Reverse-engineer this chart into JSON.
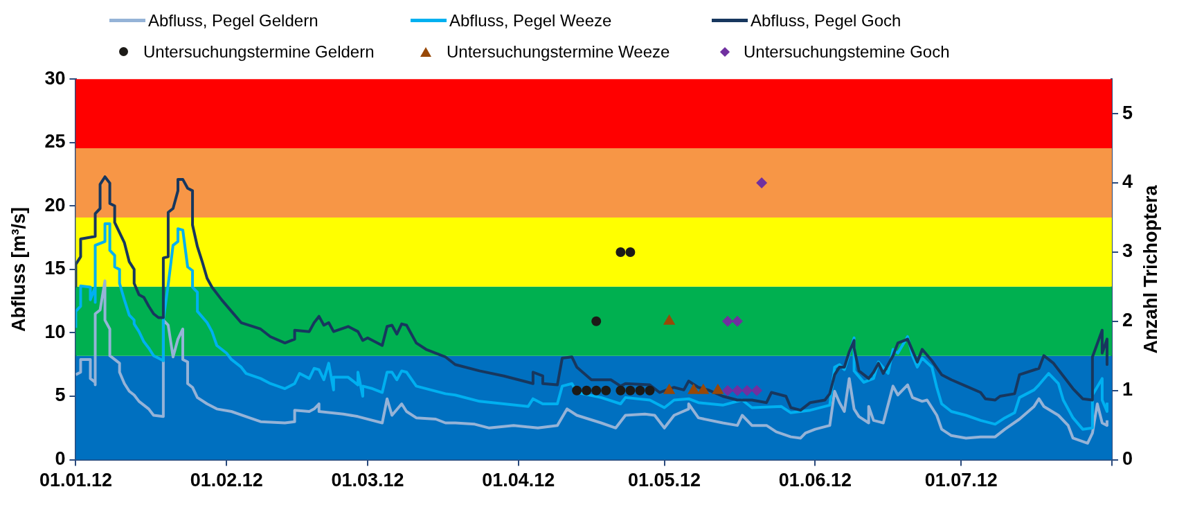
{
  "chart_data": {
    "type": "line",
    "ylabel": "Abfluss [m³/s]",
    "y2label": "Anzahl Trichoptera",
    "legend": "top",
    "grid": false,
    "xlim": [
      "2012-01-01",
      "2012-08-01"
    ],
    "xticks": [
      {
        "value": "2012-01-01",
        "label": "01.01.12"
      },
      {
        "value": "2012-02-01",
        "label": "01.02.12"
      },
      {
        "value": "2012-03-01",
        "label": "01.03.12"
      },
      {
        "value": "2012-04-01",
        "label": "01.04.12"
      },
      {
        "value": "2012-05-01",
        "label": "01.05.12"
      },
      {
        "value": "2012-06-01",
        "label": "01.06.12"
      },
      {
        "value": "2012-07-01",
        "label": "01.07.12"
      },
      {
        "value": "2012-08-01",
        "label": null
      }
    ],
    "ylim": [
      0,
      30
    ],
    "yticks": [
      0,
      5,
      10,
      15,
      20,
      25,
      30
    ],
    "y2lim": [
      0,
      5.5
    ],
    "y2ticks": [
      0,
      1,
      2,
      3,
      4,
      5
    ],
    "bands": [
      {
        "axis": "y2",
        "from": 0,
        "to": 1.5,
        "color": "#0070c0"
      },
      {
        "axis": "y2",
        "from": 1.5,
        "to": 2.5,
        "color": "#00b050"
      },
      {
        "axis": "y2",
        "from": 2.5,
        "to": 3.5,
        "color": "#ffff00"
      },
      {
        "axis": "y2",
        "from": 3.5,
        "to": 4.5,
        "color": "#f79646"
      },
      {
        "axis": "y2",
        "from": 4.5,
        "to": 5.5,
        "color": "#ff0000"
      }
    ],
    "series": [
      {
        "name": "Abfluss, Pegel Geldern",
        "color": "#95b3d7",
        "marker": "none",
        "x": [
          "2012-01-01",
          "2012-01-02",
          "2012-01-02",
          "2012-01-04",
          "2012-01-04",
          "2012-01-05",
          "2012-01-05",
          "2012-01-05",
          "2012-01-06",
          "2012-01-07",
          "2012-01-07",
          "2012-01-08",
          "2012-01-08",
          "2012-01-09",
          "2012-01-10",
          "2012-01-10",
          "2012-01-11",
          "2012-01-12",
          "2012-01-13",
          "2012-01-14",
          "2012-01-16",
          "2012-01-17",
          "2012-01-19",
          "2012-01-19",
          "2012-01-20",
          "2012-01-21",
          "2012-01-22",
          "2012-01-23",
          "2012-01-23",
          "2012-01-24",
          "2012-01-24",
          "2012-01-25",
          "2012-01-26",
          "2012-01-28",
          "2012-01-30",
          "2012-02-02",
          "2012-02-05",
          "2012-02-08",
          "2012-02-13",
          "2012-02-15",
          "2012-02-15",
          "2012-02-18",
          "2012-02-19",
          "2012-02-20",
          "2012-02-20",
          "2012-02-25",
          "2012-02-28",
          "2012-03-04",
          "2012-03-05",
          "2012-03-06",
          "2012-03-08",
          "2012-03-09",
          "2012-03-11",
          "2012-03-15",
          "2012-03-17",
          "2012-03-19",
          "2012-03-23",
          "2012-03-26",
          "2012-03-31",
          "2012-04-05",
          "2012-04-09",
          "2012-04-11",
          "2012-04-13",
          "2012-04-18",
          "2012-04-21",
          "2012-04-23",
          "2012-04-27",
          "2012-04-29",
          "2012-05-01",
          "2012-05-03",
          "2012-05-06",
          "2012-05-06",
          "2012-05-08",
          "2012-05-13",
          "2012-05-16",
          "2012-05-17",
          "2012-05-19",
          "2012-05-22",
          "2012-05-24",
          "2012-05-27",
          "2012-05-29",
          "2012-05-30",
          "2012-06-01",
          "2012-06-04",
          "2012-06-05",
          "2012-06-06",
          "2012-06-07",
          "2012-06-08",
          "2012-06-09",
          "2012-06-10",
          "2012-06-12",
          "2012-06-12",
          "2012-06-13",
          "2012-06-15",
          "2012-06-17",
          "2012-06-18",
          "2012-06-20",
          "2012-06-21",
          "2012-06-23",
          "2012-06-24",
          "2012-06-26",
          "2012-06-27",
          "2012-06-29",
          "2012-07-02",
          "2012-07-05",
          "2012-07-08",
          "2012-07-10",
          "2012-07-13",
          "2012-07-16",
          "2012-07-17",
          "2012-07-18",
          "2012-07-21",
          "2012-07-23",
          "2012-07-24",
          "2012-07-27",
          "2012-07-28",
          "2012-07-29",
          "2012-07-30",
          "2012-07-31",
          "2012-07-31"
        ],
        "values": [
          6.7,
          6.9,
          7.9,
          7.9,
          6.4,
          6.1,
          5.9,
          11.5,
          11.8,
          14.1,
          11.0,
          10.3,
          8.2,
          7.9,
          7.6,
          6.9,
          6.0,
          5.4,
          5.1,
          4.6,
          4.0,
          3.5,
          3.4,
          11.0,
          10.6,
          8.1,
          9.5,
          10.3,
          7.9,
          7.7,
          6.0,
          5.7,
          4.9,
          4.4,
          4.0,
          3.8,
          3.4,
          3.0,
          2.9,
          3.0,
          3.9,
          3.8,
          4.0,
          4.4,
          3.8,
          3.6,
          3.4,
          2.9,
          4.8,
          3.5,
          4.4,
          3.8,
          3.3,
          3.2,
          2.9,
          2.9,
          2.8,
          2.5,
          2.7,
          2.5,
          2.7,
          4.0,
          3.5,
          2.9,
          2.5,
          3.5,
          3.6,
          3.5,
          2.5,
          3.5,
          4.0,
          4.4,
          3.3,
          2.9,
          2.7,
          3.5,
          2.7,
          2.7,
          2.2,
          1.8,
          1.7,
          2.1,
          2.4,
          2.7,
          5.4,
          4.5,
          3.8,
          6.4,
          4.0,
          3.4,
          2.9,
          4.2,
          3.1,
          2.9,
          5.8,
          5.1,
          5.9,
          4.9,
          4.6,
          4.7,
          3.5,
          2.4,
          1.9,
          1.7,
          1.8,
          1.8,
          2.4,
          3.2,
          4.2,
          4.8,
          4.2,
          3.5,
          2.7,
          1.7,
          1.3,
          2.1,
          4.4,
          2.9,
          2.7,
          3.1
        ]
      },
      {
        "name": "Abfluss, Pegel Weeze",
        "color": "#00b0f0",
        "marker": "none",
        "x": [
          "2012-01-01",
          "2012-01-01",
          "2012-01-02",
          "2012-01-02",
          "2012-01-04",
          "2012-01-04",
          "2012-01-05",
          "2012-01-05",
          "2012-01-05",
          "2012-01-07",
          "2012-01-07",
          "2012-01-08",
          "2012-01-08",
          "2012-01-09",
          "2012-01-09",
          "2012-01-10",
          "2012-01-10",
          "2012-01-11",
          "2012-01-12",
          "2012-01-13",
          "2012-01-13",
          "2012-01-14",
          "2012-01-15",
          "2012-01-16",
          "2012-01-17",
          "2012-01-18",
          "2012-01-19",
          "2012-01-19",
          "2012-01-20",
          "2012-01-21",
          "2012-01-22",
          "2012-01-22",
          "2012-01-23",
          "2012-01-24",
          "2012-01-25",
          "2012-01-25",
          "2012-01-26",
          "2012-01-26",
          "2012-01-28",
          "2012-01-29",
          "2012-01-30",
          "2012-02-01",
          "2012-02-02",
          "2012-02-04",
          "2012-02-05",
          "2012-02-08",
          "2012-02-10",
          "2012-02-13",
          "2012-02-15",
          "2012-02-16",
          "2012-02-18",
          "2012-02-19",
          "2012-02-20",
          "2012-02-21",
          "2012-02-22",
          "2012-02-23",
          "2012-02-23",
          "2012-02-26",
          "2012-02-28",
          "2012-02-28",
          "2012-02-29",
          "2012-02-29",
          "2012-03-02",
          "2012-03-04",
          "2012-03-05",
          "2012-03-06",
          "2012-03-07",
          "2012-03-08",
          "2012-03-09",
          "2012-03-11",
          "2012-03-14",
          "2012-03-17",
          "2012-03-19",
          "2012-03-24",
          "2012-03-29",
          "2012-04-03",
          "2012-04-04",
          "2012-04-06",
          "2012-04-09",
          "2012-04-10",
          "2012-04-12",
          "2012-04-13",
          "2012-04-18",
          "2012-04-22",
          "2012-04-23",
          "2012-04-28",
          "2012-05-01",
          "2012-05-03",
          "2012-05-06",
          "2012-05-08",
          "2012-05-13",
          "2012-05-17",
          "2012-05-19",
          "2012-05-25",
          "2012-05-27",
          "2012-05-31",
          "2012-06-04",
          "2012-06-05",
          "2012-06-06",
          "2012-06-07",
          "2012-06-09",
          "2012-06-09",
          "2012-06-11",
          "2012-06-13",
          "2012-06-14",
          "2012-06-16",
          "2012-06-17",
          "2012-06-18",
          "2012-06-20",
          "2012-06-21",
          "2012-06-22",
          "2012-06-23",
          "2012-06-25",
          "2012-06-26",
          "2012-06-27",
          "2012-06-29",
          "2012-07-02",
          "2012-07-05",
          "2012-07-08",
          "2012-07-10",
          "2012-07-12",
          "2012-07-13",
          "2012-07-16",
          "2012-07-17",
          "2012-07-19",
          "2012-07-21",
          "2012-07-22",
          "2012-07-24",
          "2012-07-26",
          "2012-07-28",
          "2012-07-28",
          "2012-07-30",
          "2012-07-30",
          "2012-07-31",
          "2012-07-31"
        ],
        "values": [
          10.4,
          11.7,
          12.1,
          13.7,
          13.6,
          12.6,
          13.6,
          12.4,
          16.9,
          17.2,
          18.6,
          18.6,
          16.5,
          16.1,
          15.2,
          15.0,
          13.9,
          12.6,
          11.4,
          11.0,
          10.7,
          10.1,
          9.3,
          8.8,
          8.2,
          8.0,
          7.8,
          11.0,
          13.8,
          16.9,
          17.2,
          18.2,
          18.1,
          15.2,
          14.9,
          13.6,
          13.2,
          11.7,
          10.8,
          10.1,
          9.0,
          8.4,
          7.9,
          7.3,
          6.8,
          6.4,
          6.0,
          5.6,
          6.0,
          6.8,
          6.4,
          7.2,
          7.1,
          6.3,
          7.6,
          5.5,
          6.5,
          6.5,
          5.9,
          6.9,
          5.0,
          5.8,
          5.6,
          5.3,
          6.9,
          6.9,
          6.3,
          7.0,
          6.9,
          5.8,
          5.5,
          5.2,
          5.1,
          4.6,
          4.4,
          4.2,
          4.8,
          4.4,
          4.4,
          5.8,
          6.0,
          5.3,
          4.9,
          4.4,
          4.9,
          4.7,
          4.1,
          4.7,
          4.8,
          4.5,
          4.3,
          4.7,
          4.1,
          4.2,
          3.7,
          3.9,
          4.3,
          7.3,
          7.5,
          7.1,
          9.6,
          7.0,
          6.1,
          6.4,
          7.7,
          6.8,
          8.7,
          8.4,
          9.7,
          8.2,
          7.3,
          8.0,
          7.3,
          5.7,
          4.4,
          3.8,
          3.5,
          3.1,
          2.8,
          3.3,
          3.7,
          4.9,
          5.5,
          5.9,
          6.8,
          6.0,
          4.7,
          3.3,
          2.4,
          2.5,
          5.1,
          6.4,
          4.7,
          3.8,
          4.5
        ]
      },
      {
        "name": "Abfluss, Pegel Goch",
        "color": "#17375e",
        "marker": "none",
        "x": [
          "2012-01-01",
          "2012-01-01",
          "2012-01-02",
          "2012-01-02",
          "2012-01-05",
          "2012-01-05",
          "2012-01-06",
          "2012-01-06",
          "2012-01-07",
          "2012-01-08",
          "2012-01-08",
          "2012-01-09",
          "2012-01-09",
          "2012-01-11",
          "2012-01-12",
          "2012-01-13",
          "2012-01-13",
          "2012-01-14",
          "2012-01-15",
          "2012-01-16",
          "2012-01-17",
          "2012-01-18",
          "2012-01-19",
          "2012-01-19",
          "2012-01-20",
          "2012-01-20",
          "2012-01-21",
          "2012-01-22",
          "2012-01-22",
          "2012-01-23",
          "2012-01-24",
          "2012-01-25",
          "2012-01-25",
          "2012-01-26",
          "2012-01-27",
          "2012-01-28",
          "2012-01-29",
          "2012-01-31",
          "2012-02-02",
          "2012-02-04",
          "2012-02-08",
          "2012-02-10",
          "2012-02-13",
          "2012-02-15",
          "2012-02-15",
          "2012-02-18",
          "2012-02-19",
          "2012-02-20",
          "2012-02-21",
          "2012-02-22",
          "2012-02-23",
          "2012-02-26",
          "2012-02-28",
          "2012-02-29",
          "2012-03-01",
          "2012-03-04",
          "2012-03-05",
          "2012-03-06",
          "2012-03-07",
          "2012-03-08",
          "2012-03-09",
          "2012-03-11",
          "2012-03-13",
          "2012-03-15",
          "2012-03-17",
          "2012-03-19",
          "2012-03-24",
          "2012-03-29",
          "2012-04-04",
          "2012-04-04",
          "2012-04-06",
          "2012-04-06",
          "2012-04-09",
          "2012-04-10",
          "2012-04-12",
          "2012-04-13",
          "2012-04-16",
          "2012-04-20",
          "2012-04-22",
          "2012-04-23",
          "2012-04-28",
          "2012-04-30",
          "2012-05-03",
          "2012-05-05",
          "2012-05-06",
          "2012-05-08",
          "2012-05-10",
          "2012-05-13",
          "2012-05-16",
          "2012-05-19",
          "2012-05-22",
          "2012-05-23",
          "2012-05-26",
          "2012-05-27",
          "2012-05-29",
          "2012-05-31",
          "2012-06-03",
          "2012-06-04",
          "2012-06-05",
          "2012-06-06",
          "2012-06-07",
          "2012-06-08",
          "2012-06-09",
          "2012-06-09",
          "2012-06-10",
          "2012-06-12",
          "2012-06-13",
          "2012-06-14",
          "2012-06-15",
          "2012-06-17",
          "2012-06-18",
          "2012-06-20",
          "2012-06-21",
          "2012-06-22",
          "2012-06-23",
          "2012-06-25",
          "2012-06-27",
          "2012-06-29",
          "2012-07-02",
          "2012-07-05",
          "2012-07-06",
          "2012-07-08",
          "2012-07-09",
          "2012-07-12",
          "2012-07-13",
          "2012-07-17",
          "2012-07-18",
          "2012-07-20",
          "2012-07-22",
          "2012-07-24",
          "2012-07-26",
          "2012-07-28",
          "2012-07-28",
          "2012-07-30",
          "2012-07-30",
          "2012-07-31",
          "2012-07-31"
        ],
        "values": [
          13.6,
          15.4,
          16.0,
          17.4,
          17.6,
          19.4,
          19.8,
          21.7,
          22.3,
          21.8,
          20.2,
          20.0,
          18.7,
          17.1,
          15.6,
          15.0,
          13.9,
          13.0,
          12.8,
          12.1,
          11.5,
          11.2,
          11.2,
          15.9,
          16.0,
          19.5,
          19.8,
          21.2,
          22.1,
          22.1,
          21.4,
          21.2,
          18.5,
          16.8,
          15.6,
          14.3,
          13.6,
          12.6,
          11.7,
          10.8,
          10.3,
          9.7,
          9.2,
          9.5,
          10.2,
          10.1,
          10.8,
          11.3,
          10.6,
          10.8,
          10.1,
          10.5,
          10.1,
          9.4,
          9.6,
          9.0,
          10.5,
          10.6,
          9.9,
          10.7,
          10.6,
          9.2,
          8.7,
          8.4,
          8.1,
          7.5,
          7.0,
          6.6,
          6.0,
          6.9,
          6.6,
          6.0,
          5.9,
          8.0,
          8.1,
          7.3,
          6.3,
          6.3,
          5.8,
          6.0,
          5.9,
          5.3,
          5.7,
          5.5,
          6.2,
          5.7,
          5.5,
          5.0,
          4.7,
          4.7,
          4.5,
          5.3,
          5.0,
          4.1,
          3.9,
          4.5,
          4.7,
          5.2,
          6.7,
          7.3,
          7.3,
          8.5,
          9.4,
          8.8,
          7.0,
          6.4,
          6.9,
          7.6,
          6.8,
          8.2,
          9.2,
          9.5,
          8.6,
          7.7,
          8.7,
          7.8,
          6.7,
          6.3,
          5.8,
          5.3,
          4.8,
          4.7,
          5.0,
          5.2,
          6.7,
          7.2,
          8.2,
          7.6,
          6.6,
          5.6,
          4.8,
          4.7,
          8.1,
          10.2,
          8.4,
          9.5,
          7.5
        ]
      },
      {
        "name": "Untersuchungstermine Geldern",
        "type": "scatter",
        "axis": "y2",
        "color": "#1c1a17",
        "marker": "circle",
        "x": [
          "2012-04-13",
          "2012-04-15",
          "2012-04-17",
          "2012-04-19",
          "2012-04-22",
          "2012-04-24",
          "2012-04-26",
          "2012-04-28",
          "2012-04-17",
          "2012-04-22",
          "2012-04-24"
        ],
        "values": [
          1,
          1,
          1,
          1,
          1,
          1,
          1,
          1,
          2,
          3,
          3
        ]
      },
      {
        "name": "Untersuchungstermine Weeze",
        "type": "scatter",
        "axis": "y2",
        "color": "#984807",
        "marker": "triangle",
        "x": [
          "2012-05-02",
          "2012-05-07",
          "2012-05-09",
          "2012-05-12",
          "2012-05-02"
        ],
        "values": [
          1,
          1,
          1,
          1,
          2
        ]
      },
      {
        "name": "Untersuchungstemine Goch",
        "type": "scatter",
        "axis": "y2",
        "color": "#7030a0",
        "marker": "diamond",
        "x": [
          "2012-05-14",
          "2012-05-16",
          "2012-05-18",
          "2012-05-20",
          "2012-05-14",
          "2012-05-16",
          "2012-05-21"
        ],
        "values": [
          1,
          1,
          1,
          1,
          2,
          2,
          4
        ]
      }
    ]
  }
}
